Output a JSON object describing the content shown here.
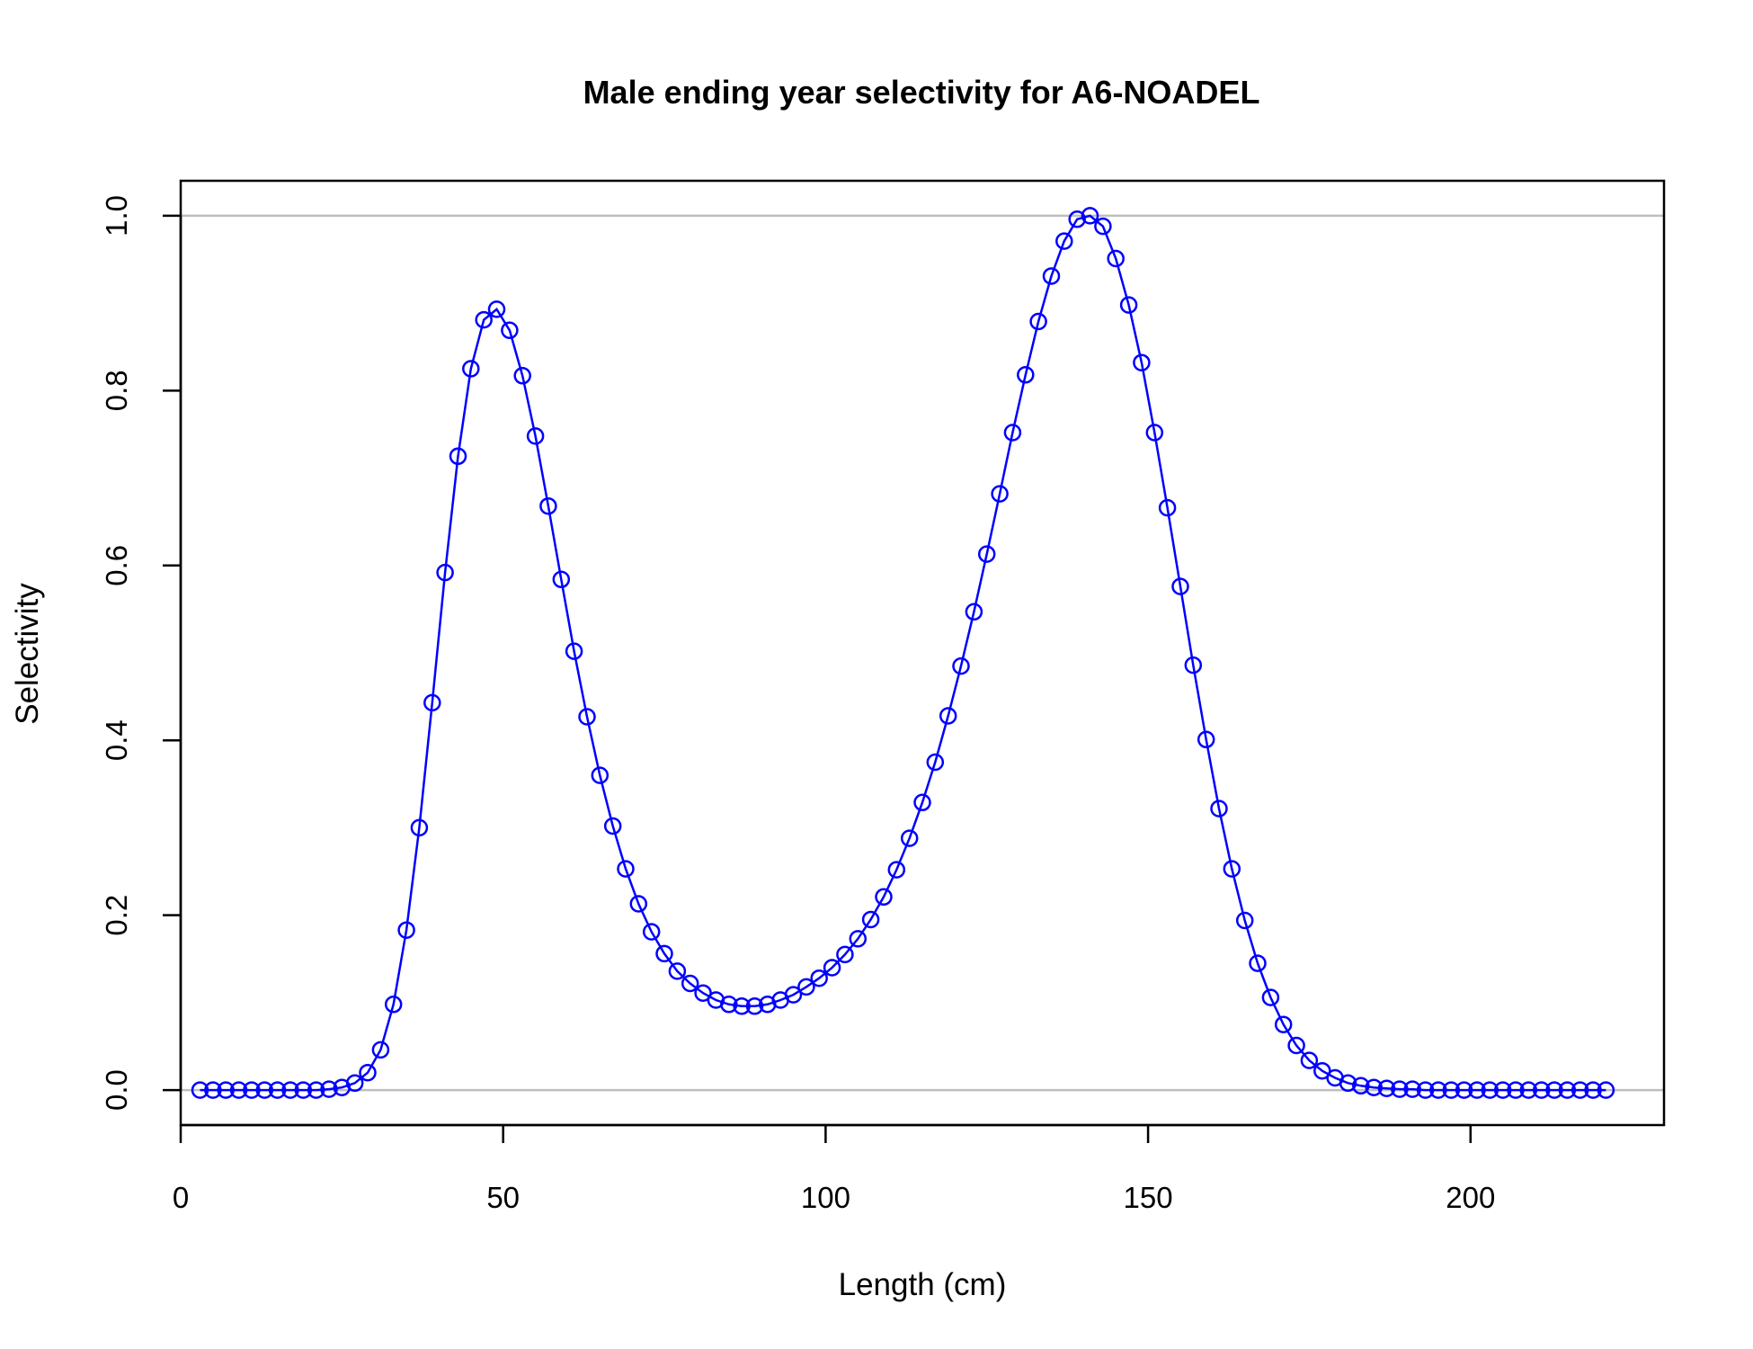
{
  "chart_data": {
    "type": "line",
    "title": "Male ending year selectivity for A6-NOADEL",
    "xlabel": "Length (cm)",
    "ylabel": "Selectivity",
    "xlim": [
      0,
      230
    ],
    "ylim": [
      -0.04,
      1.04
    ],
    "x_ticks": [
      "0",
      "50",
      "100",
      "150",
      "200"
    ],
    "x_tick_values": [
      0,
      50,
      100,
      150,
      200
    ],
    "y_ticks": [
      "0.0",
      "0.2",
      "0.4",
      "0.6",
      "0.8",
      "1.0"
    ],
    "y_tick_values": [
      0,
      0.2,
      0.4,
      0.6,
      0.8,
      1.0
    ],
    "reference_lines_y": [
      0,
      1
    ],
    "reference_line_color": "#bebebe",
    "series_color": "#0000ff",
    "markers": "open-circle",
    "grid": false,
    "legend": "none",
    "x": [
      3,
      5,
      7,
      9,
      11,
      13,
      15,
      17,
      19,
      21,
      23,
      25,
      27,
      29,
      31,
      33,
      35,
      37,
      39,
      41,
      43,
      45,
      47,
      49,
      51,
      53,
      55,
      57,
      59,
      61,
      63,
      65,
      67,
      69,
      71,
      73,
      75,
      77,
      79,
      81,
      83,
      85,
      87,
      89,
      91,
      93,
      95,
      97,
      99,
      101,
      103,
      105,
      107,
      109,
      111,
      113,
      115,
      117,
      119,
      121,
      123,
      125,
      127,
      129,
      131,
      133,
      135,
      137,
      139,
      141,
      143,
      145,
      147,
      149,
      151,
      153,
      155,
      157,
      159,
      161,
      163,
      165,
      167,
      169,
      171,
      173,
      175,
      177,
      179,
      181,
      183,
      185,
      187,
      189,
      191,
      193,
      195,
      197,
      199,
      201,
      203,
      205,
      207,
      209,
      211,
      213,
      215,
      217,
      219,
      221
    ],
    "y": [
      0,
      0,
      0,
      0,
      0,
      0,
      0,
      0,
      0,
      0,
      0.001,
      0.003,
      0.008,
      0.02,
      0.046,
      0.098,
      0.183,
      0.3,
      0.443,
      0.592,
      0.725,
      0.825,
      0.881,
      0.893,
      0.869,
      0.817,
      0.748,
      0.668,
      0.584,
      0.502,
      0.427,
      0.36,
      0.302,
      0.253,
      0.213,
      0.181,
      0.156,
      0.136,
      0.122,
      0.111,
      0.103,
      0.098,
      0.096,
      0.096,
      0.098,
      0.103,
      0.109,
      0.118,
      0.128,
      0.14,
      0.155,
      0.173,
      0.195,
      0.221,
      0.252,
      0.288,
      0.329,
      0.375,
      0.428,
      0.485,
      0.547,
      0.613,
      0.682,
      0.752,
      0.818,
      0.879,
      0.931,
      0.971,
      0.996,
      1.0,
      0.988,
      0.951,
      0.898,
      0.832,
      0.752,
      0.666,
      0.576,
      0.486,
      0.401,
      0.322,
      0.253,
      0.194,
      0.145,
      0.106,
      0.075,
      0.051,
      0.034,
      0.022,
      0.014,
      0.008,
      0.005,
      0.003,
      0.002,
      0.001,
      0.001,
      0,
      0,
      0,
      0,
      0,
      0,
      0,
      0,
      0,
      0,
      0,
      0,
      0,
      0,
      0
    ]
  }
}
